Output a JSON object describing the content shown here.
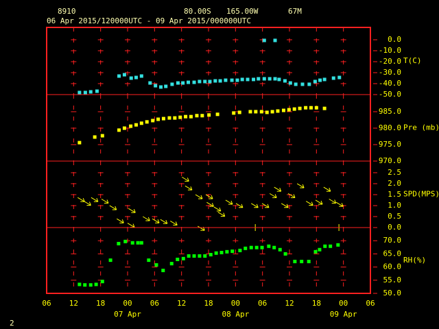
{
  "header": {
    "station": "8910",
    "lat": "80.00S",
    "lon": "165.00W",
    "elev": "67M",
    "period": "06 Apr 2015/120000UTC - 09 Apr 2015/000000UTC",
    "page": "2"
  },
  "chart_data": [
    {
      "type": "scatter",
      "label": "T(C)",
      "color": "#33e0e0",
      "ylim": [
        -50,
        11.25
      ],
      "yticks": [
        {
          "value": 0,
          "label": "0.0"
        },
        {
          "value": -10,
          "label": "-10.0"
        },
        {
          "value": -20,
          "label": "-20.0"
        },
        {
          "value": -30,
          "label": "-30.0"
        },
        {
          "value": -40,
          "label": "-40.0"
        },
        {
          "value": -50,
          "label": "-50.0"
        }
      ],
      "x": [
        7.3,
        8.6,
        9.8,
        11.2,
        16.1,
        17.3,
        18.8,
        19.9,
        21.1,
        23,
        24.2,
        25.4,
        26.5,
        27.9,
        29.2,
        30.3,
        31.5,
        32.8,
        34,
        35.2,
        36.3,
        37.5,
        38.6,
        39.8,
        41.2,
        42.4,
        43.5,
        44.7,
        46,
        47.1,
        48.4,
        49.6,
        50.8,
        51.7,
        53,
        54.2,
        55.4,
        56.9,
        58.4,
        59.7,
        60.8,
        61.8,
        63.8,
        65.1,
        48.4,
        50.8
      ],
      "values": [
        -48.1,
        -48.1,
        -47.5,
        -46.9,
        -33.1,
        -31.9,
        -35,
        -34.4,
        -33.1,
        -39.4,
        -41.9,
        -43.1,
        -42.5,
        -40.6,
        -39.4,
        -39.4,
        -38.8,
        -38.8,
        -38.1,
        -38.1,
        -38.1,
        -37.5,
        -37.5,
        -36.9,
        -36.9,
        -36.9,
        -36.2,
        -36.2,
        -36.2,
        -35.6,
        -35.6,
        -35.6,
        -35.6,
        -36.2,
        -37.5,
        -39.4,
        -40.6,
        -40.6,
        -40.6,
        -38.1,
        -36.9,
        -36.2,
        -35,
        -34.4,
        -0.6,
        -0.6
      ]
    },
    {
      "type": "scatter",
      "label": "Pre (mb)",
      "color": "#ffff00",
      "ylim": [
        970,
        990.2
      ],
      "yticks": [
        {
          "value": 985,
          "label": "985.0"
        },
        {
          "value": 980,
          "label": "980.0"
        },
        {
          "value": 975,
          "label": "975.0"
        },
        {
          "value": 970,
          "label": "970.0"
        }
      ],
      "x": [
        7.3,
        10.7,
        12.4,
        16.1,
        17.3,
        18.7,
        19.9,
        21.1,
        22.3,
        23.6,
        24.8,
        26,
        27.3,
        28.5,
        29.7,
        30.9,
        32.1,
        33.4,
        34.6,
        36.1,
        38,
        41.6,
        42.9,
        45.3,
        46.5,
        47.8,
        49,
        50.2,
        51.4,
        52.7,
        53.9,
        55.1,
        56.3,
        57.6,
        58.8,
        60,
        61.8
      ],
      "values": [
        975.6,
        977.3,
        977.7,
        979.4,
        980,
        980.6,
        981,
        981.5,
        981.9,
        982.3,
        982.7,
        982.9,
        983.1,
        983.1,
        983.3,
        983.5,
        983.5,
        983.8,
        983.8,
        984,
        984.2,
        984.6,
        984.8,
        985,
        985,
        985,
        984.8,
        985,
        985.2,
        985.4,
        985.6,
        985.8,
        986,
        986.2,
        986.2,
        986.2,
        986
      ]
    },
    {
      "type": "wind",
      "label": "SPD(MPS)",
      "color": "#ffff00",
      "ylim": [
        0,
        3.03
      ],
      "yticks": [
        {
          "value": 2.5,
          "label": "2.5"
        },
        {
          "value": 2,
          "label": "2.0"
        },
        {
          "value": 1.5,
          "label": "1.5"
        },
        {
          "value": 1,
          "label": "1.0"
        },
        {
          "value": 0.5,
          "label": "0.5"
        },
        {
          "value": 0,
          "label": "0.0"
        }
      ],
      "x": [
        6.9,
        8.3,
        9.9,
        12.2,
        14,
        15.6,
        18,
        18.2,
        21.4,
        23.5,
        25.3,
        27.5,
        30.1,
        30.8,
        33.1,
        35.4,
        35.6,
        37.2,
        38.1,
        39.8,
        42.1,
        45.5,
        47.9,
        49.6,
        50.6,
        52.2,
        53.7,
        55.7,
        57.7,
        59.8,
        61.6,
        62.8,
        64.4,
        33.6,
        46.4,
        65
      ],
      "values": [
        1.37,
        1.2,
        1.37,
        1.3,
        1.0,
        0.4,
        0.2,
        0.87,
        0.5,
        0.4,
        0.37,
        0.3,
        2.3,
        1.9,
        1.5,
        1.5,
        1.15,
        0.94,
        0.7,
        1.25,
        1.1,
        1.1,
        1.1,
        1.55,
        1.84,
        1.1,
        1.55,
        2.0,
        1.2,
        1.25,
        1.84,
        1.3,
        1.15,
        0.06,
        0,
        0
      ]
    },
    {
      "type": "scatter",
      "label": "RH(%)",
      "color": "#00ff00",
      "ylim": [
        50,
        75
      ],
      "yticks": [
        {
          "value": 70,
          "label": "70.0"
        },
        {
          "value": 65,
          "label": "65.0"
        },
        {
          "value": 60,
          "label": "60.0"
        },
        {
          "value": 55,
          "label": "55.0"
        },
        {
          "value": 50,
          "label": "50.0"
        }
      ],
      "xlim": [
        0,
        72
      ],
      "xticks": [
        {
          "value": 0,
          "label": "06"
        },
        {
          "value": 6,
          "label": "12"
        },
        {
          "value": 12,
          "label": "18"
        },
        {
          "value": 18,
          "label": "00"
        },
        {
          "value": 24,
          "label": "06"
        },
        {
          "value": 30,
          "label": "12"
        },
        {
          "value": 36,
          "label": "18"
        },
        {
          "value": 42,
          "label": "00"
        },
        {
          "value": 48,
          "label": "06"
        },
        {
          "value": 54,
          "label": "12"
        },
        {
          "value": 60,
          "label": "18"
        },
        {
          "value": 66,
          "label": "00"
        },
        {
          "value": 72,
          "label": "06"
        }
      ],
      "x_date_labels": [
        {
          "value": 18,
          "label": "07 Apr"
        },
        {
          "value": 42,
          "label": "08 Apr"
        },
        {
          "value": 66,
          "label": "09 Apr"
        }
      ],
      "x": [
        7.3,
        8.5,
        9.8,
        11,
        12.4,
        14.2,
        16,
        17.5,
        19.1,
        20.3,
        21.1,
        22.7,
        24.4,
        25.9,
        27.8,
        29.1,
        30.4,
        31.6,
        32.8,
        34,
        35.2,
        36.5,
        37.7,
        38.9,
        40.1,
        41.3,
        43,
        44.2,
        45.5,
        46.7,
        47.9,
        49.4,
        50.6,
        51.9,
        53.1,
        55.2,
        56.7,
        58.3,
        59.8,
        60.7,
        61.9,
        63.1,
        64.8
      ],
      "values": [
        53.4,
        53.2,
        53.2,
        53.4,
        54.5,
        62.6,
        68.9,
        69.7,
        69.2,
        69.2,
        69.2,
        62.6,
        60.8,
        58.7,
        61.3,
        62.9,
        63.2,
        64.2,
        64.2,
        64.2,
        64.2,
        64.7,
        65.3,
        65.5,
        65.8,
        66,
        66.3,
        67.1,
        67.4,
        67.4,
        67.4,
        67.9,
        67.4,
        66.6,
        65,
        62.1,
        62.1,
        62.1,
        65.8,
        66.6,
        67.9,
        67.9,
        68.4
      ]
    }
  ]
}
